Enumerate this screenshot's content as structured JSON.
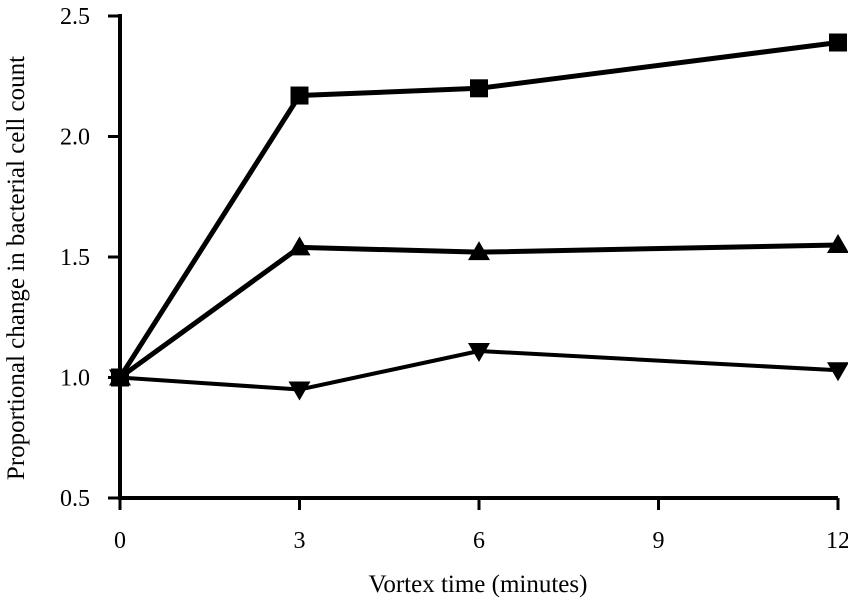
{
  "chart_data": {
    "type": "line",
    "title": "",
    "xlabel": "Vortex time (minutes)",
    "ylabel": "Proportional change in bacterial cell count",
    "x": [
      0,
      3,
      6,
      12
    ],
    "xlim": [
      0,
      12
    ],
    "ylim": [
      0.5,
      2.5
    ],
    "x_ticks": [
      "0",
      "3",
      "6",
      "9",
      "12"
    ],
    "y_ticks": [
      "0.5",
      "1.0",
      "1.5",
      "2.0",
      "2.5"
    ],
    "grid": false,
    "series": [
      {
        "marker": "square",
        "values": [
          1.0,
          2.17,
          2.2,
          2.39
        ]
      },
      {
        "marker": "triangle-up",
        "values": [
          1.0,
          1.54,
          1.52,
          1.55
        ]
      },
      {
        "marker": "triangle-down",
        "values": [
          1.0,
          0.95,
          1.11,
          1.03
        ]
      }
    ]
  }
}
